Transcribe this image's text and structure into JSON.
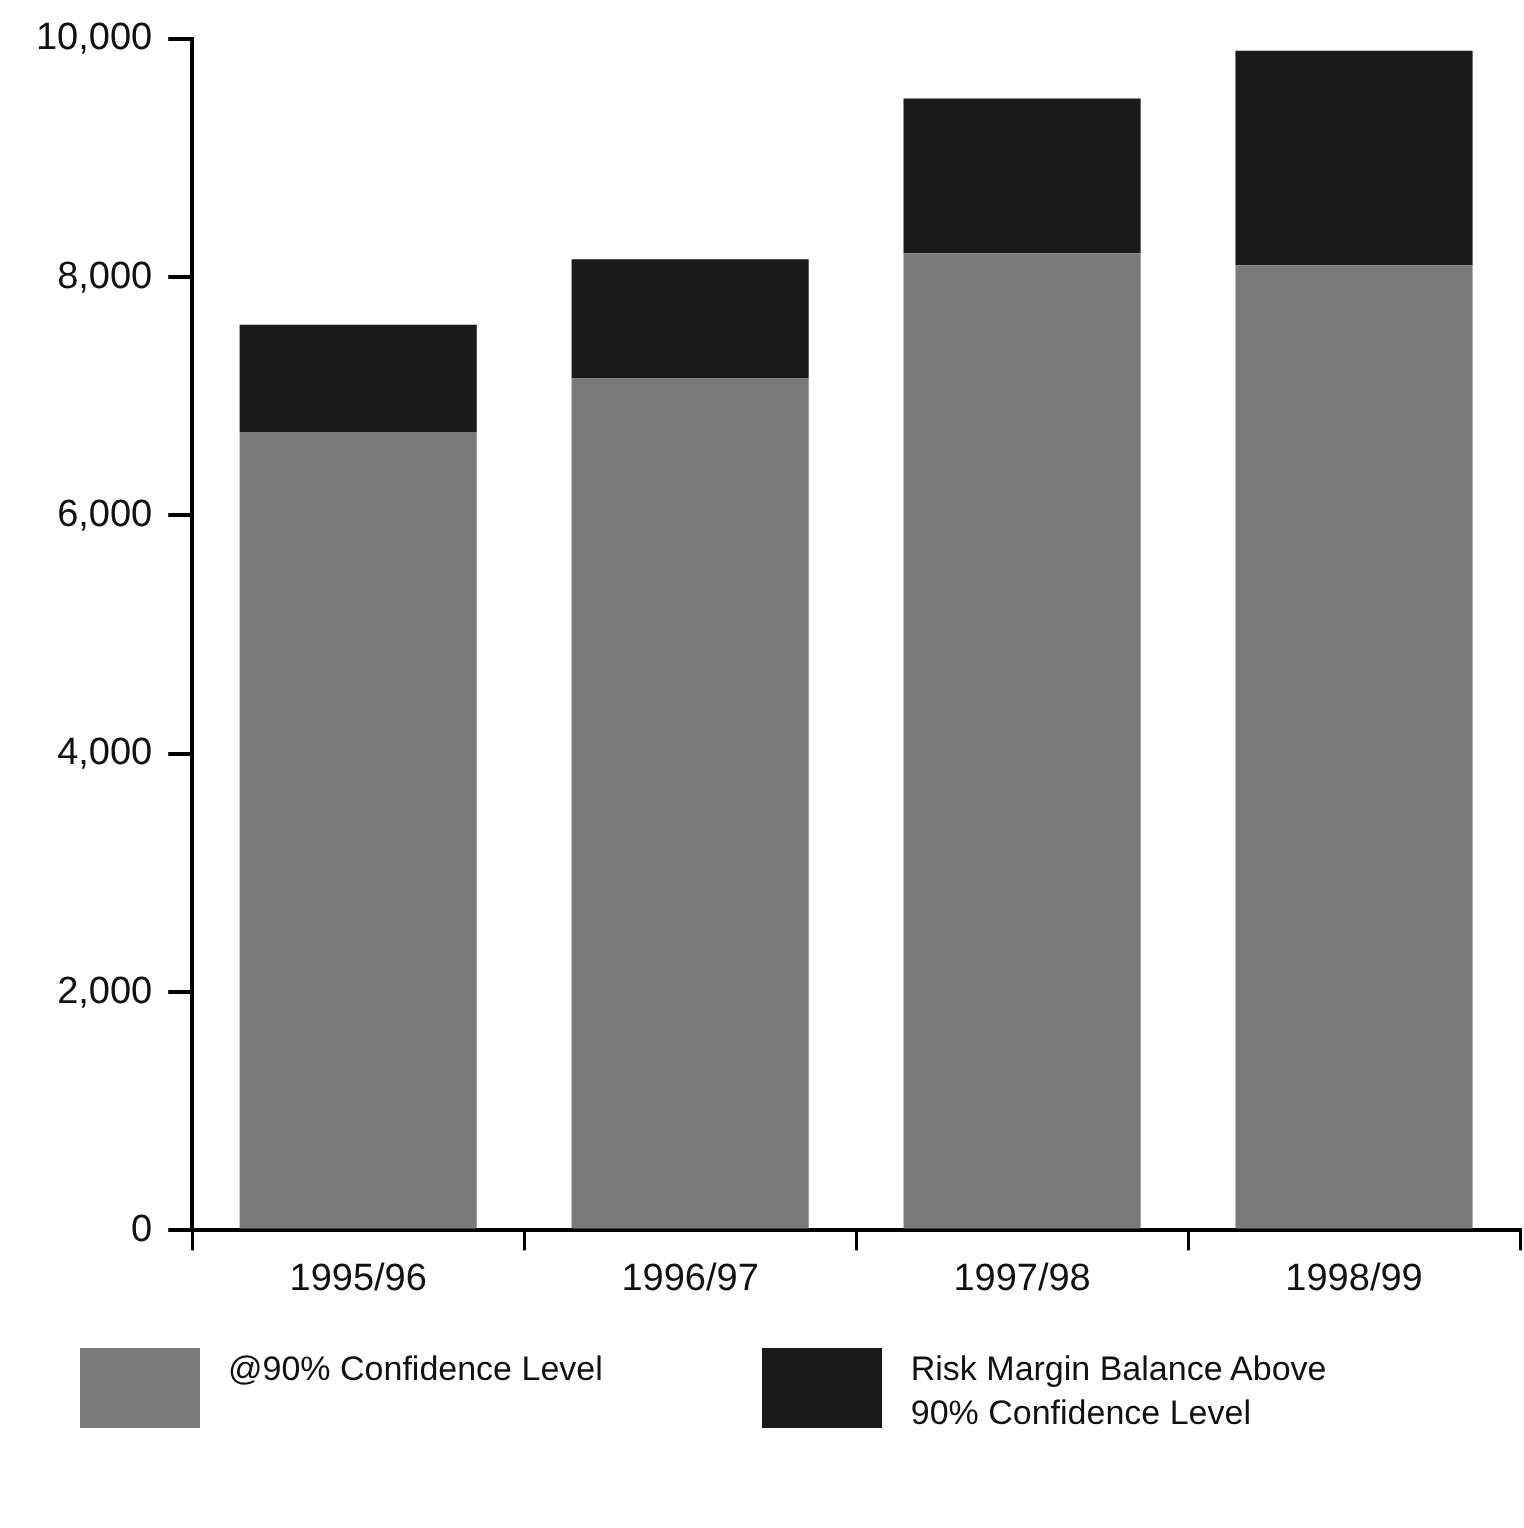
{
  "chart_data": {
    "type": "bar",
    "stacked": true,
    "categories": [
      "1995/96",
      "1996/97",
      "1997/98",
      "1998/99"
    ],
    "series": [
      {
        "name": "@90% Confidence Level",
        "color": "#7a7a7a",
        "values": [
          6700,
          7150,
          8200,
          8100
        ]
      },
      {
        "name": "Risk Margin Balance Above 90% Confidence Level",
        "color": "#1a1a1a",
        "values": [
          900,
          1000,
          1300,
          1800
        ]
      }
    ],
    "ylim": [
      0,
      10000
    ],
    "yticks": [
      {
        "value": 0,
        "label": "0"
      },
      {
        "value": 2000,
        "label": "2,000"
      },
      {
        "value": 4000,
        "label": "4,000"
      },
      {
        "value": 6000,
        "label": "6,000"
      },
      {
        "value": 8000,
        "label": "8,000"
      },
      {
        "value": 10000,
        "label": "10,000"
      }
    ],
    "grid": false,
    "legend": "bottom"
  }
}
